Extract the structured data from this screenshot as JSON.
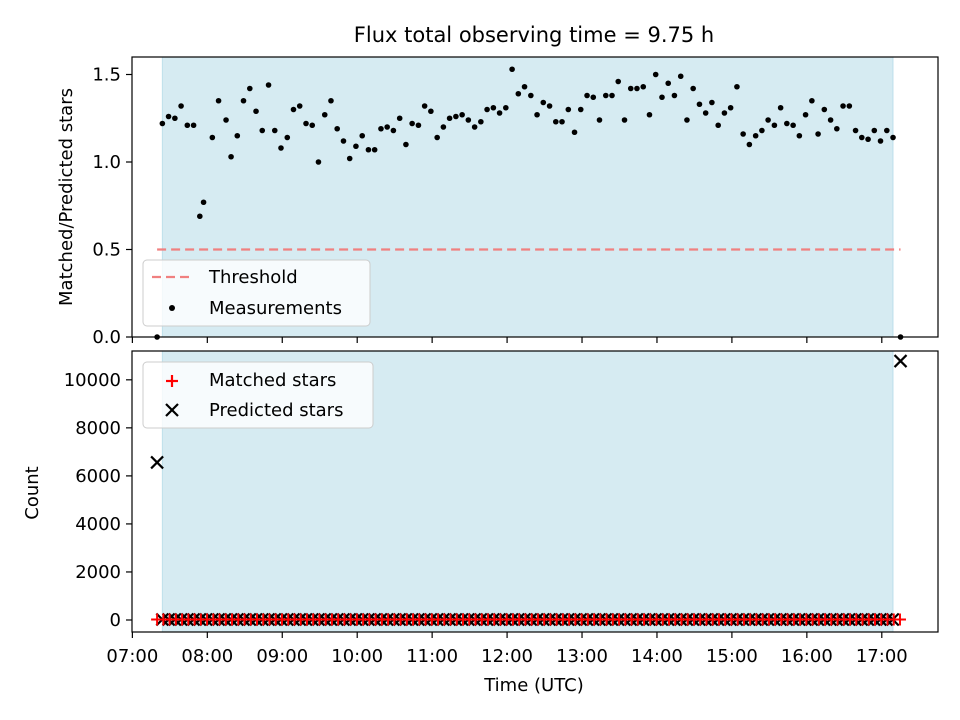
{
  "chart_data": [
    {
      "type": "scatter",
      "title": "Flux total observing time = 9.75 h",
      "xlabel": "",
      "ylabel": "Matched/Predicted stars",
      "ylim": [
        0,
        1.6
      ],
      "yticks": [
        0.0,
        0.5,
        1.0,
        1.5
      ],
      "ytick_labels": [
        "0.0",
        "0.5",
        "1.0",
        "1.5"
      ],
      "observing_window_hours": [
        7.4,
        17.15
      ],
      "threshold": {
        "value": 0.5,
        "x_range_hours": [
          7.33,
          17.25
        ],
        "color": "#f08080"
      },
      "legend": {
        "position": "lower-left",
        "entries": [
          "Threshold",
          "Measurements"
        ]
      },
      "measurements": {
        "x_hours": [
          7.33,
          7.4,
          7.483,
          7.567,
          7.65,
          7.733,
          7.817,
          7.9,
          7.95,
          8.067,
          8.15,
          8.25,
          8.317,
          8.4,
          8.483,
          8.567,
          8.65,
          8.733,
          8.817,
          8.9,
          8.983,
          9.067,
          9.15,
          9.233,
          9.317,
          9.4,
          9.483,
          9.567,
          9.65,
          9.733,
          9.817,
          9.9,
          9.983,
          10.067,
          10.15,
          10.233,
          10.317,
          10.4,
          10.483,
          10.567,
          10.65,
          10.733,
          10.817,
          10.9,
          10.983,
          11.067,
          11.15,
          11.233,
          11.317,
          11.4,
          11.483,
          11.567,
          11.65,
          11.733,
          11.817,
          11.9,
          11.983,
          12.067,
          12.15,
          12.233,
          12.317,
          12.4,
          12.483,
          12.567,
          12.65,
          12.733,
          12.817,
          12.9,
          12.983,
          13.067,
          13.15,
          13.233,
          13.317,
          13.4,
          13.483,
          13.567,
          13.65,
          13.733,
          13.817,
          13.9,
          13.983,
          14.067,
          14.15,
          14.233,
          14.317,
          14.4,
          14.483,
          14.567,
          14.65,
          14.733,
          14.817,
          14.9,
          14.983,
          15.067,
          15.15,
          15.233,
          15.317,
          15.4,
          15.483,
          15.567,
          15.65,
          15.733,
          15.817,
          15.9,
          15.983,
          16.067,
          16.15,
          16.233,
          16.317,
          16.4,
          16.483,
          16.567,
          16.65,
          16.733,
          16.817,
          16.9,
          16.983,
          17.067,
          17.15,
          17.25
        ],
        "y": [
          0.0,
          1.22,
          1.26,
          1.25,
          1.32,
          1.21,
          1.21,
          0.69,
          0.77,
          1.14,
          1.35,
          1.24,
          1.03,
          1.15,
          1.35,
          1.42,
          1.29,
          1.18,
          1.44,
          1.18,
          1.08,
          1.14,
          1.3,
          1.32,
          1.22,
          1.21,
          1.0,
          1.27,
          1.35,
          1.19,
          1.12,
          1.02,
          1.09,
          1.15,
          1.07,
          1.07,
          1.19,
          1.2,
          1.18,
          1.25,
          1.1,
          1.22,
          1.21,
          1.32,
          1.29,
          1.14,
          1.2,
          1.25,
          1.26,
          1.27,
          1.24,
          1.2,
          1.23,
          1.3,
          1.31,
          1.28,
          1.31,
          1.53,
          1.39,
          1.43,
          1.38,
          1.27,
          1.34,
          1.32,
          1.23,
          1.23,
          1.3,
          1.17,
          1.3,
          1.38,
          1.37,
          1.24,
          1.38,
          1.38,
          1.46,
          1.24,
          1.42,
          1.42,
          1.43,
          1.27,
          1.5,
          1.37,
          1.45,
          1.38,
          1.49,
          1.24,
          1.42,
          1.33,
          1.28,
          1.34,
          1.21,
          1.28,
          1.31,
          1.43,
          1.16,
          1.1,
          1.15,
          1.18,
          1.24,
          1.21,
          1.31,
          1.22,
          1.21,
          1.15,
          1.27,
          1.35,
          1.16,
          1.3,
          1.24,
          1.19,
          1.32,
          1.32,
          1.18,
          1.14,
          1.13,
          1.18,
          1.12,
          1.18,
          1.14,
          0.0
        ]
      }
    },
    {
      "type": "scatter",
      "title": "",
      "xlabel": "Time (UTC)",
      "ylabel": "Count",
      "ylim": [
        -500,
        11200
      ],
      "yticks": [
        0,
        2000,
        4000,
        6000,
        8000,
        10000
      ],
      "ytick_labels": [
        "0",
        "2000",
        "4000",
        "6000",
        "8000",
        "10000"
      ],
      "x_tick_labels": [
        "07:00",
        "08:00",
        "09:00",
        "10:00",
        "11:00",
        "12:00",
        "13:00",
        "14:00",
        "15:00",
        "16:00",
        "17:00"
      ],
      "x_tick_hours": [
        7,
        8,
        9,
        10,
        11,
        12,
        13,
        14,
        15,
        16,
        17
      ],
      "observing_window_hours": [
        7.4,
        17.15
      ],
      "legend": {
        "position": "top-left",
        "entries": [
          "Matched stars",
          "Predicted stars"
        ]
      },
      "series": [
        {
          "name": "Matched stars",
          "marker": "+",
          "color": "#ff0000",
          "x_hours_range": [
            7.33,
            17.25
          ],
          "step_hours": 0.0833,
          "typical_value": 20,
          "note_values_first_last": [
            0,
            0
          ]
        },
        {
          "name": "Predicted stars",
          "marker": "x",
          "color": "#000000",
          "outliers": [
            {
              "x_hours": 7.33,
              "y": 6560
            },
            {
              "x_hours": 17.25,
              "y": 10780
            }
          ],
          "x_hours_range": [
            7.4,
            17.15
          ],
          "step_hours": 0.0833,
          "typical_value": 20
        }
      ]
    }
  ]
}
